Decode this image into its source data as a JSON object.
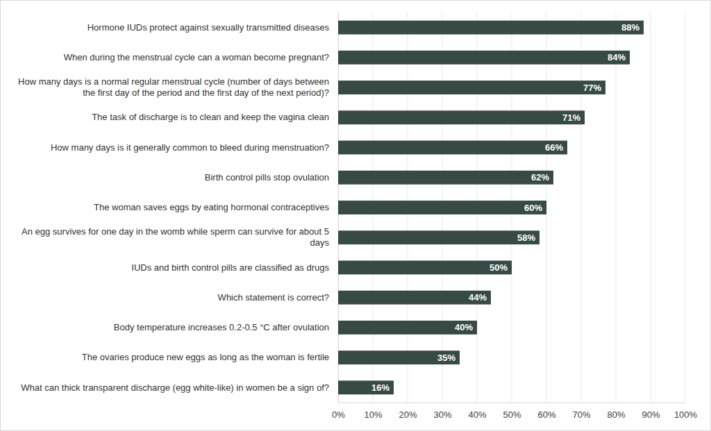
{
  "chart_data": {
    "type": "bar",
    "orientation": "horizontal",
    "categories": [
      "Hormone IUDs protect against sexually transmitted diseases",
      "When during the menstrual cycle can a woman become pregnant?",
      "How many days is a normal regular menstrual cycle (number of days between the first day of the period and the first day of the next period)?",
      "The task of discharge is to clean and keep the vagina clean",
      "How many days is it generally common to bleed during menstruation?",
      "Birth control pills stop ovulation",
      "The woman saves eggs by eating hormonal contraceptives",
      "An egg survives for one day in the womb while sperm can survive for about 5 days",
      "IUDs and birth control pills are classified as drugs",
      "Which statement is correct?",
      "Body temperature increases 0.2-0.5 °C after ovulation",
      "The ovaries produce new eggs as long as the woman is fertile",
      "What can thick transparent discharge (egg white-like) in women be a sign of?"
    ],
    "values": [
      88,
      84,
      77,
      71,
      66,
      62,
      60,
      58,
      50,
      44,
      40,
      35,
      16
    ],
    "value_labels": [
      "88%",
      "84%",
      "77%",
      "71%",
      "66%",
      "62%",
      "60%",
      "58%",
      "50%",
      "44%",
      "40%",
      "35%",
      "16%"
    ],
    "data_labels": true,
    "color": "#374a43",
    "xlim": [
      0,
      100
    ],
    "xticks": [
      {
        "value": 0,
        "label": "0%"
      },
      {
        "value": 10,
        "label": "10%"
      },
      {
        "value": 20,
        "label": "20%"
      },
      {
        "value": 30,
        "label": "30%"
      },
      {
        "value": 40,
        "label": "40%"
      },
      {
        "value": 50,
        "label": "50%"
      },
      {
        "value": 60,
        "label": "60%"
      },
      {
        "value": 70,
        "label": "70%"
      },
      {
        "value": 80,
        "label": "80%"
      },
      {
        "value": 90,
        "label": "90%"
      },
      {
        "value": 100,
        "label": "100%"
      }
    ],
    "grid": true
  }
}
